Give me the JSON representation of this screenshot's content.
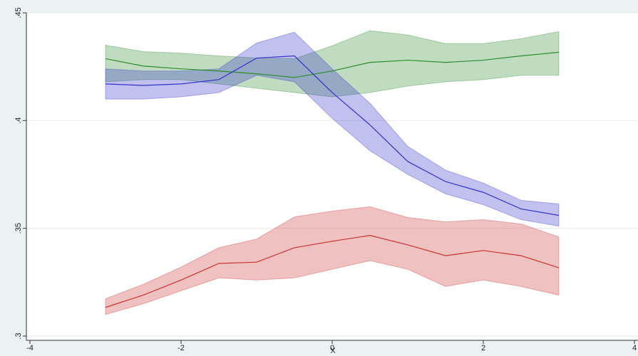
{
  "chart_data": {
    "type": "line-band",
    "x_label": "X",
    "x": [
      -3,
      -2.5,
      -2,
      -1.5,
      -1,
      -0.5,
      0,
      0.5,
      1,
      1.5,
      2,
      2.5,
      3
    ],
    "series": [
      {
        "color": "#2e8b2e",
        "values": [
          0.4287,
          0.4253,
          0.424,
          0.423,
          0.4217,
          0.42,
          0.423,
          0.427,
          0.428,
          0.427,
          0.428,
          0.43,
          0.4317
        ],
        "upper": [
          0.435,
          0.432,
          0.4313,
          0.43,
          0.429,
          0.4287,
          0.4347,
          0.4417,
          0.4397,
          0.4357,
          0.4357,
          0.438,
          0.4413
        ],
        "lower": [
          0.418,
          0.419,
          0.419,
          0.417,
          0.415,
          0.413,
          0.411,
          0.413,
          0.416,
          0.418,
          0.419,
          0.421,
          0.421
        ]
      },
      {
        "color": "#3333cc",
        "values": [
          0.417,
          0.4163,
          0.417,
          0.419,
          0.429,
          0.43,
          0.413,
          0.398,
          0.381,
          0.3717,
          0.3667,
          0.359,
          0.356
        ],
        "upper": [
          0.424,
          0.423,
          0.423,
          0.424,
          0.436,
          0.441,
          0.424,
          0.408,
          0.388,
          0.377,
          0.371,
          0.363,
          0.3613
        ],
        "lower": [
          0.41,
          0.41,
          0.411,
          0.413,
          0.421,
          0.418,
          0.401,
          0.386,
          0.375,
          0.366,
          0.361,
          0.354,
          0.351
        ]
      },
      {
        "color": "#cc3333",
        "values": [
          0.3133,
          0.319,
          0.326,
          0.3337,
          0.3343,
          0.341,
          0.344,
          0.3467,
          0.3423,
          0.3373,
          0.3397,
          0.3373,
          0.3317
        ],
        "upper": [
          0.3173,
          0.324,
          0.332,
          0.341,
          0.345,
          0.3553,
          0.358,
          0.36,
          0.355,
          0.353,
          0.354,
          0.352,
          0.346
        ],
        "lower": [
          0.31,
          0.315,
          0.321,
          0.327,
          0.326,
          0.327,
          0.331,
          0.335,
          0.331,
          0.323,
          0.326,
          0.323,
          0.319
        ]
      }
    ],
    "xlim": [
      -4,
      4
    ],
    "xticks": [
      -4,
      -2,
      0,
      2,
      4
    ],
    "ylim": [
      0.3,
      0.45
    ],
    "yticks": [
      {
        "value": 0.3,
        "label": ".3"
      },
      {
        "value": 0.35,
        "label": ".35"
      },
      {
        "value": 0.4,
        "label": ".4"
      },
      {
        "value": 0.45,
        "label": ".45"
      }
    ],
    "grid": true
  }
}
